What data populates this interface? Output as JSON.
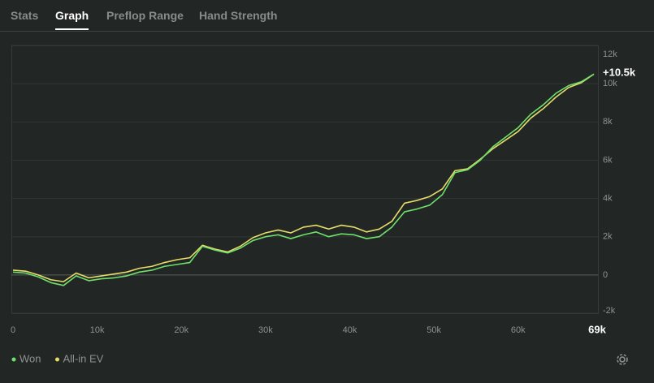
{
  "tabs": [
    "Stats",
    "Graph",
    "Preflop Range",
    "Hand Strength"
  ],
  "chart_data": {
    "type": "line",
    "annotation": "+10.5k",
    "x": [
      0,
      1500,
      3000,
      4500,
      6000,
      7500,
      9000,
      10500,
      12000,
      13500,
      15000,
      16500,
      18000,
      19500,
      21000,
      22500,
      24000,
      25500,
      27000,
      28500,
      30000,
      31500,
      33000,
      34500,
      36000,
      37500,
      39000,
      40500,
      42000,
      43500,
      45000,
      46500,
      48000,
      49500,
      51000,
      52500,
      54000,
      55500,
      57000,
      58500,
      60000,
      61500,
      63000,
      64500,
      66000,
      67500,
      69000
    ],
    "series": [
      {
        "name": "Won",
        "color": "#6fe06a",
        "values": [
          150,
          100,
          -100,
          -400,
          -550,
          -50,
          -300,
          -200,
          -150,
          -50,
          150,
          250,
          450,
          550,
          650,
          1500,
          1300,
          1150,
          1400,
          1800,
          2000,
          2100,
          1900,
          2100,
          2250,
          2000,
          2150,
          2100,
          1900,
          2000,
          2500,
          3300,
          3450,
          3650,
          4200,
          5350,
          5500,
          6000,
          6700,
          7200,
          7700,
          8400,
          8900,
          9500,
          9900,
          10100,
          10500
        ]
      },
      {
        "name": "All-in EV",
        "color": "#e6dc6a",
        "values": [
          250,
          200,
          0,
          -250,
          -350,
          100,
          -150,
          -50,
          50,
          150,
          350,
          450,
          650,
          800,
          900,
          1550,
          1350,
          1200,
          1500,
          1950,
          2200,
          2350,
          2200,
          2500,
          2600,
          2400,
          2600,
          2500,
          2250,
          2400,
          2800,
          3750,
          3900,
          4100,
          4500,
          5450,
          5550,
          6050,
          6600,
          7050,
          7500,
          8200,
          8700,
          9300,
          9800,
          10050,
          10500
        ]
      }
    ],
    "xlim": [
      0,
      69000
    ],
    "ylim": [
      -2000,
      12000
    ],
    "xticks": [
      0,
      {
        "value": 10000,
        "label": "10k"
      },
      {
        "value": 20000,
        "label": "20k"
      },
      {
        "value": 30000,
        "label": "30k"
      },
      {
        "value": 40000,
        "label": "40k"
      },
      {
        "value": 50000,
        "label": "50k"
      },
      {
        "value": 60000,
        "label": "60k"
      },
      {
        "value": 69000,
        "label": "69k"
      }
    ],
    "yticks": [
      {
        "value": -2000,
        "label": "-2k"
      },
      0,
      {
        "value": 2000,
        "label": "2k"
      },
      {
        "value": 4000,
        "label": "4k"
      },
      {
        "value": 6000,
        "label": "6k"
      },
      {
        "value": 8000,
        "label": "8k"
      },
      {
        "value": 10000,
        "label": "10k"
      },
      {
        "value": 12000,
        "label": "12k"
      }
    ],
    "grid": true
  }
}
